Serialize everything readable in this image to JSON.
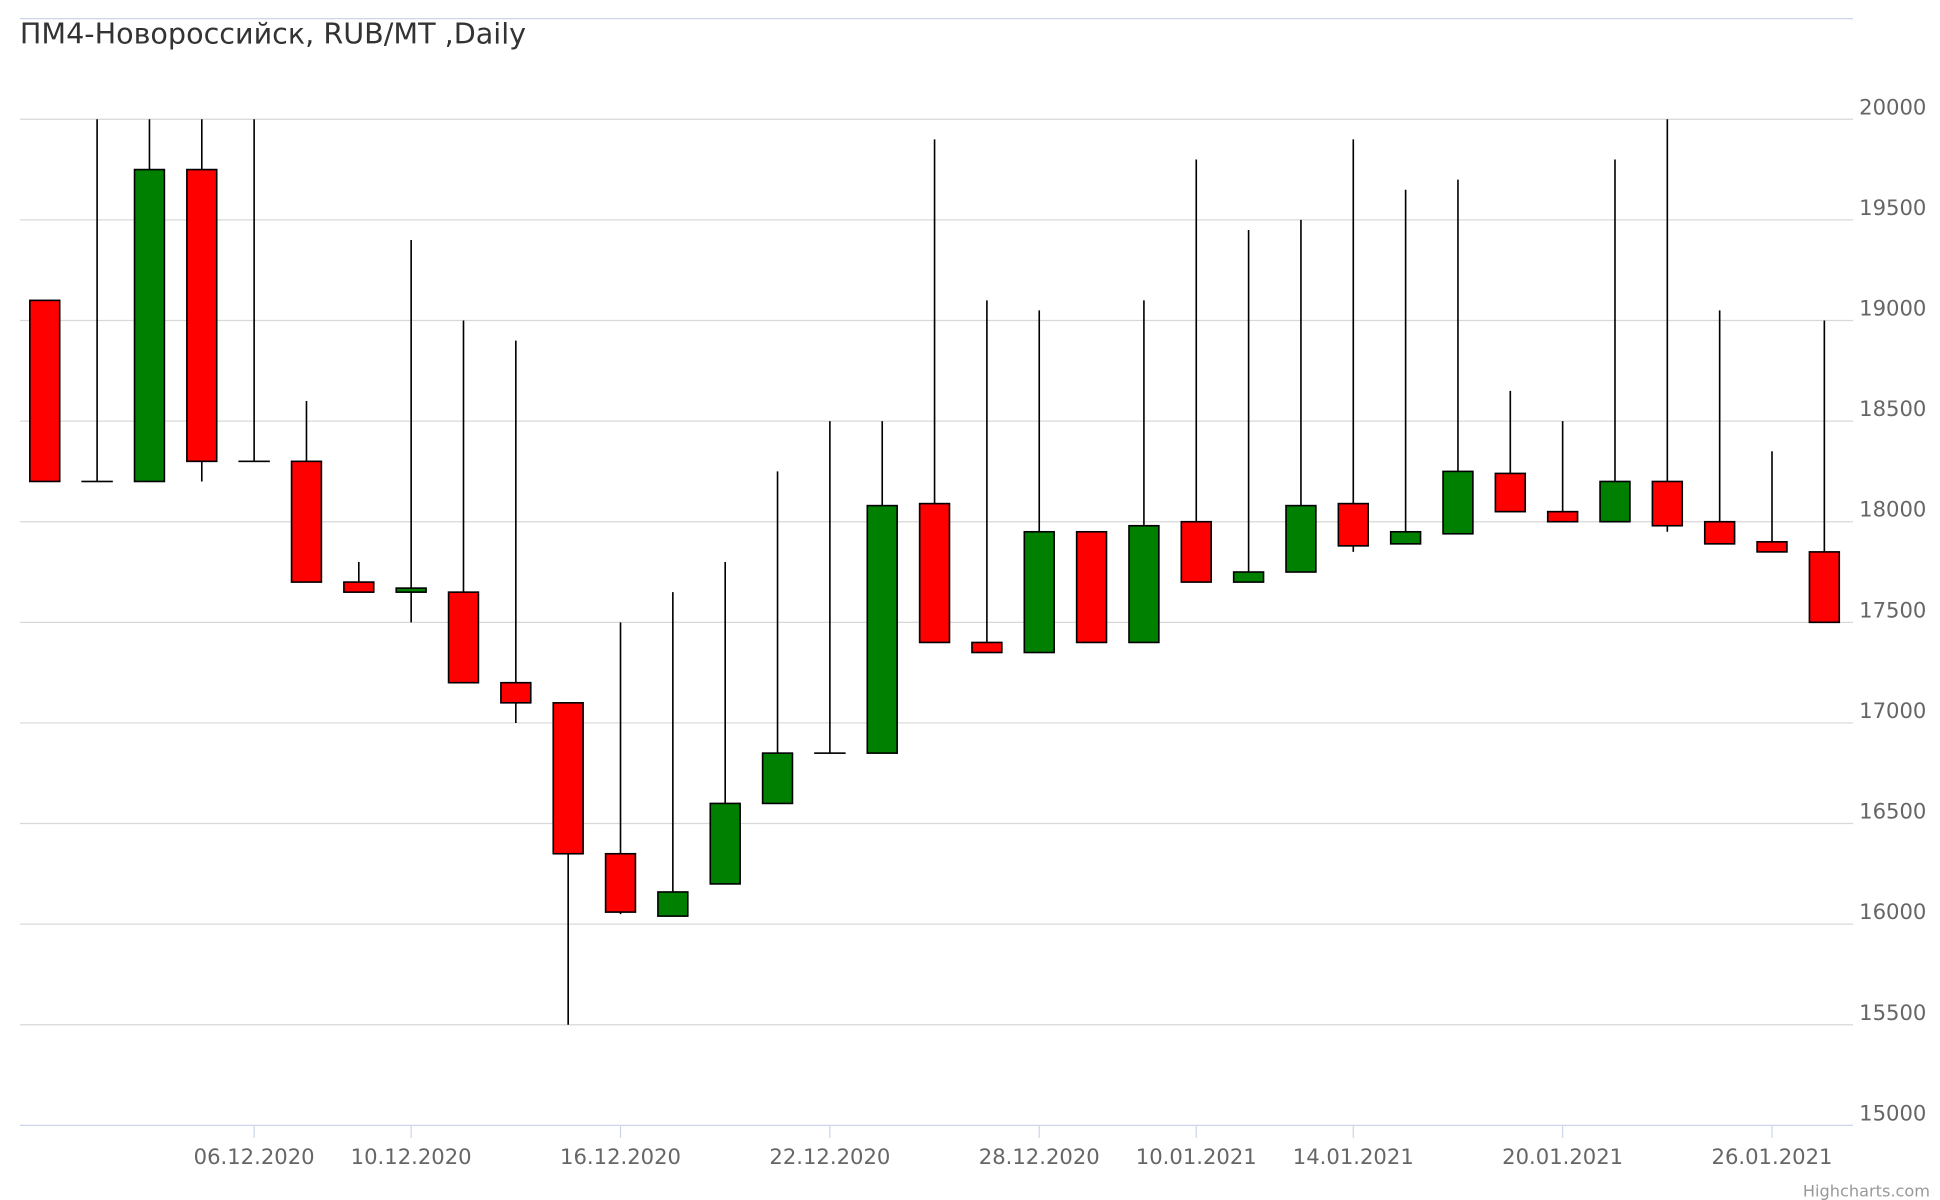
{
  "chart_data": {
    "type": "candlestick",
    "title": "ПМ4-Новороссийск, RUB/MT ,Daily",
    "credits": "Highcharts.com",
    "categories": [
      null,
      null,
      null,
      null,
      "06.12.2020",
      null,
      null,
      "10.12.2020",
      null,
      null,
      null,
      "16.12.2020",
      null,
      null,
      null,
      "22.12.2020",
      null,
      null,
      null,
      "28.12.2020",
      null,
      null,
      "10.01.2021",
      null,
      null,
      "14.01.2021",
      null,
      null,
      null,
      "20.01.2021",
      null,
      null,
      null,
      "26.01.2021",
      null
    ],
    "open": [
      19100,
      18200,
      18200,
      19750,
      18300,
      18300,
      17700,
      17650,
      17650,
      17200,
      17100,
      16350,
      16040,
      16200,
      16600,
      16850,
      16850,
      18090,
      17400,
      17350,
      17950,
      17400,
      18000,
      17700,
      17750,
      18090,
      17890,
      17940,
      18240,
      18050,
      18000,
      18200,
      18000,
      17900,
      17850
    ],
    "high": [
      19100,
      20000,
      20000,
      20000,
      20000,
      18600,
      17800,
      19400,
      19000,
      18900,
      17100,
      17500,
      17650,
      17800,
      18250,
      18500,
      18500,
      19900,
      19100,
      19050,
      17950,
      19100,
      19800,
      19450,
      19500,
      19900,
      19650,
      19700,
      18650,
      18500,
      19800,
      20000,
      19050,
      18350,
      19000
    ],
    "low": [
      18200,
      18200,
      18200,
      18200,
      18300,
      17700,
      17650,
      17500,
      17200,
      17000,
      15500,
      16050,
      16040,
      16200,
      16600,
      16850,
      16850,
      17400,
      17350,
      17350,
      17400,
      17400,
      17700,
      17700,
      17750,
      17850,
      17890,
      17940,
      18050,
      18000,
      18000,
      17950,
      17890,
      17850,
      17500
    ],
    "close": [
      18200,
      18200,
      19750,
      18300,
      18300,
      17700,
      17650,
      17670,
      17200,
      17100,
      16350,
      16060,
      16160,
      16600,
      16850,
      16850,
      18080,
      17400,
      17350,
      17950,
      17400,
      17980,
      17700,
      17750,
      18080,
      17880,
      17950,
      18250,
      18050,
      18000,
      18200,
      17980,
      17890,
      17850,
      17500
    ],
    "up_color": "#008000",
    "down_color": "#ff0000",
    "ylim": [
      15000,
      20500
    ],
    "yticks": [
      15000,
      15500,
      16000,
      16500,
      17000,
      17500,
      18000,
      18500,
      19000,
      19500,
      20000
    ],
    "grid": true
  }
}
